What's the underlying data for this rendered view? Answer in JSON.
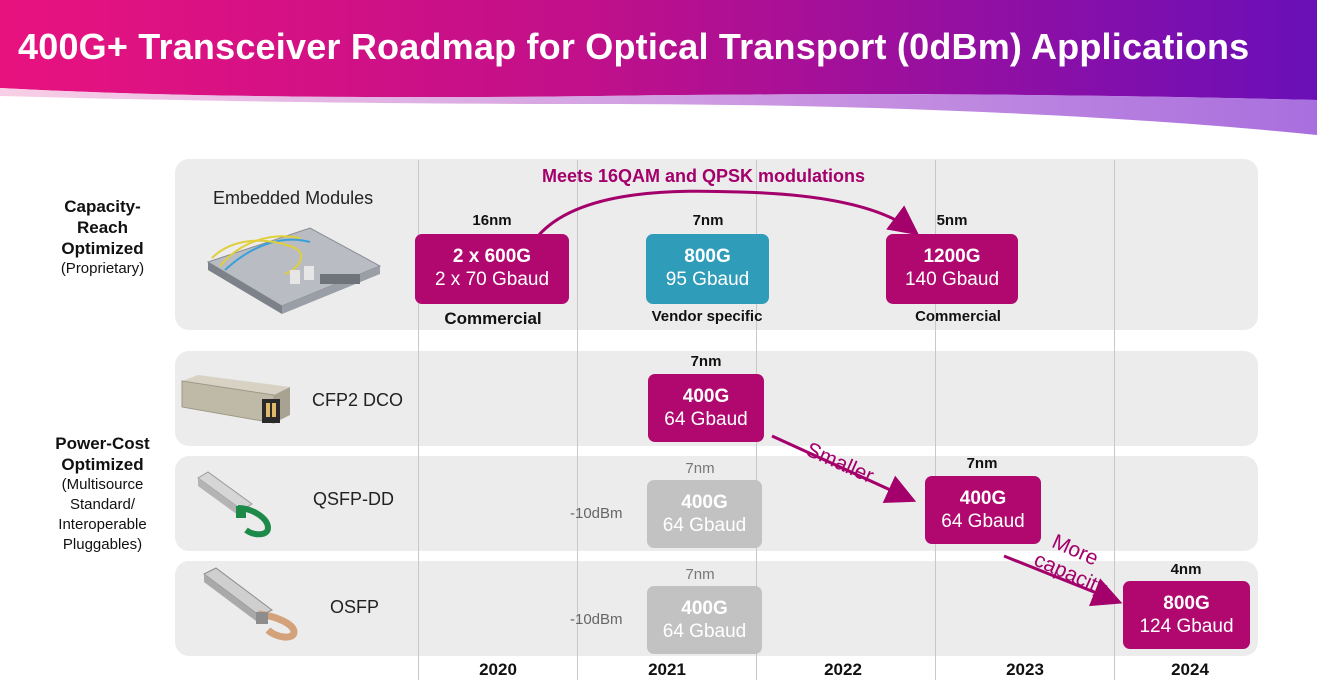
{
  "title": "400G+ Transceiver Roadmap for Optical Transport (0dBm) Applications",
  "years": [
    "2020",
    "2021",
    "2022",
    "2023",
    "2024"
  ],
  "groups": {
    "capacity": {
      "title": "Capacity-Reach Optimized",
      "sub": "(Proprietary)"
    },
    "power": {
      "title": "Power-Cost Optimized",
      "sub": "(Multisource Standard/ Interoperable Pluggables)"
    }
  },
  "rows": {
    "embedded": {
      "label": "Embedded Modules"
    },
    "cfp2": {
      "label": "CFP2 DCO"
    },
    "qsfp": {
      "label": "QSFP-DD"
    },
    "osfp": {
      "label": "OSFP"
    }
  },
  "embedded_boxes": [
    {
      "node": "16nm",
      "line1": "2 x 600G",
      "line2": "2 x 70 Gbaud",
      "status": "Commercial",
      "color": "#b0086f"
    },
    {
      "node": "7nm",
      "line1": "800G",
      "line2": "95 Gbaud",
      "status": "Vendor specific",
      "color": "#2f9cb9"
    },
    {
      "node": "5nm",
      "line1": "1200G",
      "line2": "140 Gbaud",
      "status": "Commercial",
      "color": "#b0086f"
    }
  ],
  "cfp2_box": {
    "node": "7nm",
    "line1": "400G",
    "line2": "64 Gbaud"
  },
  "qsfp_grey": {
    "node": "7nm",
    "line1": "400G",
    "line2": "64 Gbaud",
    "power": "-10dBm"
  },
  "qsfp_box": {
    "node": "7nm",
    "line1": "400G",
    "line2": "64 Gbaud"
  },
  "osfp_grey": {
    "node": "7nm",
    "line1": "400G",
    "line2": "64 Gbaud",
    "power": "-10dBm"
  },
  "osfp_box": {
    "node": "4nm",
    "line1": "800G",
    "line2": "124 Gbaud"
  },
  "annotations": {
    "meets": "Meets 16QAM and QPSK modulations",
    "smaller": "Smaller",
    "more1": "More",
    "more2": "capacity"
  },
  "colors": {
    "magenta": "#b0086f",
    "teal": "#2f9cb9",
    "grey": "#c2c2c2",
    "accent_text": "#a3006b"
  }
}
